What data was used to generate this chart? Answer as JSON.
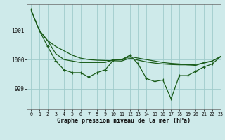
{
  "title": "Graphe pression niveau de la mer (hPa)",
  "background_color": "#ceeaea",
  "grid_color": "#a0cccc",
  "line_color": "#1a5c1a",
  "xlim": [
    -0.5,
    23
  ],
  "ylim": [
    998.3,
    1001.9
  ],
  "yticks": [
    999,
    1000,
    1001
  ],
  "xticks": [
    0,
    1,
    2,
    3,
    4,
    5,
    6,
    7,
    8,
    9,
    10,
    11,
    12,
    13,
    14,
    15,
    16,
    17,
    18,
    19,
    20,
    21,
    22,
    23
  ],
  "series_top": [
    1001.7,
    1001.0,
    1000.65,
    1000.45,
    1000.3,
    1000.15,
    1000.05,
    1000.0,
    999.98,
    999.97,
    999.96,
    999.95,
    1000.05,
    999.98,
    999.92,
    999.88,
    999.85,
    999.83,
    999.82,
    999.82,
    999.83,
    999.88,
    999.95,
    1000.1
  ],
  "series_mid": [
    1001.7,
    1001.0,
    1000.65,
    1000.2,
    1000.0,
    999.95,
    999.9,
    999.9,
    999.9,
    999.9,
    1000.0,
    1000.0,
    1000.1,
    1000.05,
    1000.0,
    999.95,
    999.9,
    999.87,
    999.85,
    999.82,
    999.8,
    999.9,
    999.95,
    1000.1
  ],
  "series_bot": [
    1001.7,
    1001.0,
    1000.45,
    999.95,
    999.65,
    999.55,
    999.55,
    999.4,
    999.55,
    999.65,
    999.98,
    1000.0,
    1000.15,
    999.85,
    999.35,
    999.25,
    999.3,
    998.65,
    999.45,
    999.45,
    999.6,
    999.75,
    999.85,
    1000.1
  ]
}
